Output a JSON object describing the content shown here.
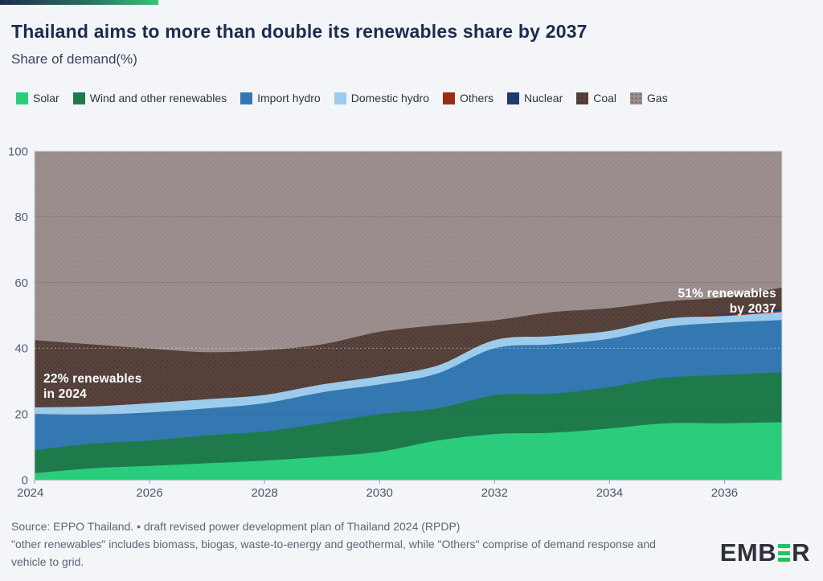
{
  "header": {
    "title": "Thailand aims to more than double its renewables share by 2037",
    "subtitle": "Share of demand(%)"
  },
  "chart_data": {
    "type": "area",
    "stacked": true,
    "title": "Thailand aims to more than double its renewables share by 2037",
    "ylabel": "Share of demand(%)",
    "xlabel": "",
    "x": [
      2024,
      2025,
      2026,
      2027,
      2028,
      2029,
      2030,
      2031,
      2032,
      2033,
      2034,
      2035,
      2036,
      2037
    ],
    "xticks": [
      2024,
      2026,
      2028,
      2030,
      2032,
      2034,
      2036
    ],
    "ylim": [
      0,
      100
    ],
    "yticks": [
      0,
      20,
      40,
      60,
      80,
      100
    ],
    "grid_values": [
      20,
      40,
      60,
      80
    ],
    "legend_position": "top",
    "series": [
      {
        "name": "Solar",
        "color": "#2bcd7c",
        "textured": false,
        "values": [
          2.0,
          3.5,
          4.2,
          5.0,
          5.8,
          7.0,
          8.5,
          11.9,
          13.9,
          14.3,
          15.6,
          17.2,
          17.2,
          17.5
        ]
      },
      {
        "name": "Wind and other renewables",
        "color": "#1e7a4b",
        "textured": false,
        "values": [
          7.0,
          7.5,
          7.7,
          8.5,
          8.9,
          10.2,
          11.5,
          9.8,
          11.8,
          11.9,
          12.6,
          13.9,
          14.7,
          15.2
        ]
      },
      {
        "name": "Import hydro",
        "color": "#3478b2",
        "textured": false,
        "values": [
          11.0,
          8.8,
          8.6,
          8.2,
          8.6,
          9.4,
          9.0,
          10.6,
          14.3,
          15.0,
          14.7,
          15.4,
          15.9,
          15.9
        ]
      },
      {
        "name": "Domestic hydro",
        "color": "#9ccbeb",
        "textured": false,
        "values": [
          2.0,
          2.5,
          2.8,
          2.8,
          2.5,
          2.4,
          2.5,
          2.4,
          2.5,
          2.5,
          2.4,
          2.5,
          2.0,
          2.4
        ]
      },
      {
        "name": "Others",
        "color": "#9b2d15",
        "textured": false,
        "values": [
          0,
          0,
          0,
          0,
          0,
          0,
          0,
          0,
          0,
          0,
          0,
          0,
          0.3,
          0.4
        ]
      },
      {
        "name": "Nuclear",
        "color": "#1f3a6e",
        "textured": false,
        "values": [
          0,
          0,
          0,
          0,
          0,
          0,
          0,
          0,
          0,
          0,
          0,
          0,
          0.3,
          0.6
        ]
      },
      {
        "name": "Coal",
        "color": "#57433c",
        "textured": true,
        "dot_color": "#42322c",
        "values": [
          20.5,
          18.9,
          16.6,
          14.3,
          13.6,
          12.2,
          13.5,
          12.3,
          6.0,
          7.3,
          6.9,
          5.3,
          5.1,
          6.5
        ]
      },
      {
        "name": "Gas",
        "color": "#9c8e8c",
        "textured": true,
        "dot_color": "#8f8287",
        "values": [
          57.5,
          58.8,
          60.1,
          61.2,
          60.6,
          58.8,
          55.0,
          53.0,
          51.5,
          49.0,
          47.8,
          45.7,
          44.5,
          41.5
        ]
      }
    ],
    "annotations": {
      "start": {
        "line1": "22% renewables",
        "line2": "in 2024"
      },
      "end": {
        "line1": "51% renewables",
        "line2": "by 2037"
      }
    }
  },
  "footer": {
    "source": "Source: EPPO Thailand. • draft revised power development plan of Thailand 2024 (RPDP)",
    "note": "\"other renewables\" includes biomass, biogas, waste-to-energy and geothermal, while \"Others\" comprise of demand response and vehicle to grid."
  },
  "logo": {
    "prefix": "EMB",
    "suffix": "R",
    "name": "EMBER"
  }
}
